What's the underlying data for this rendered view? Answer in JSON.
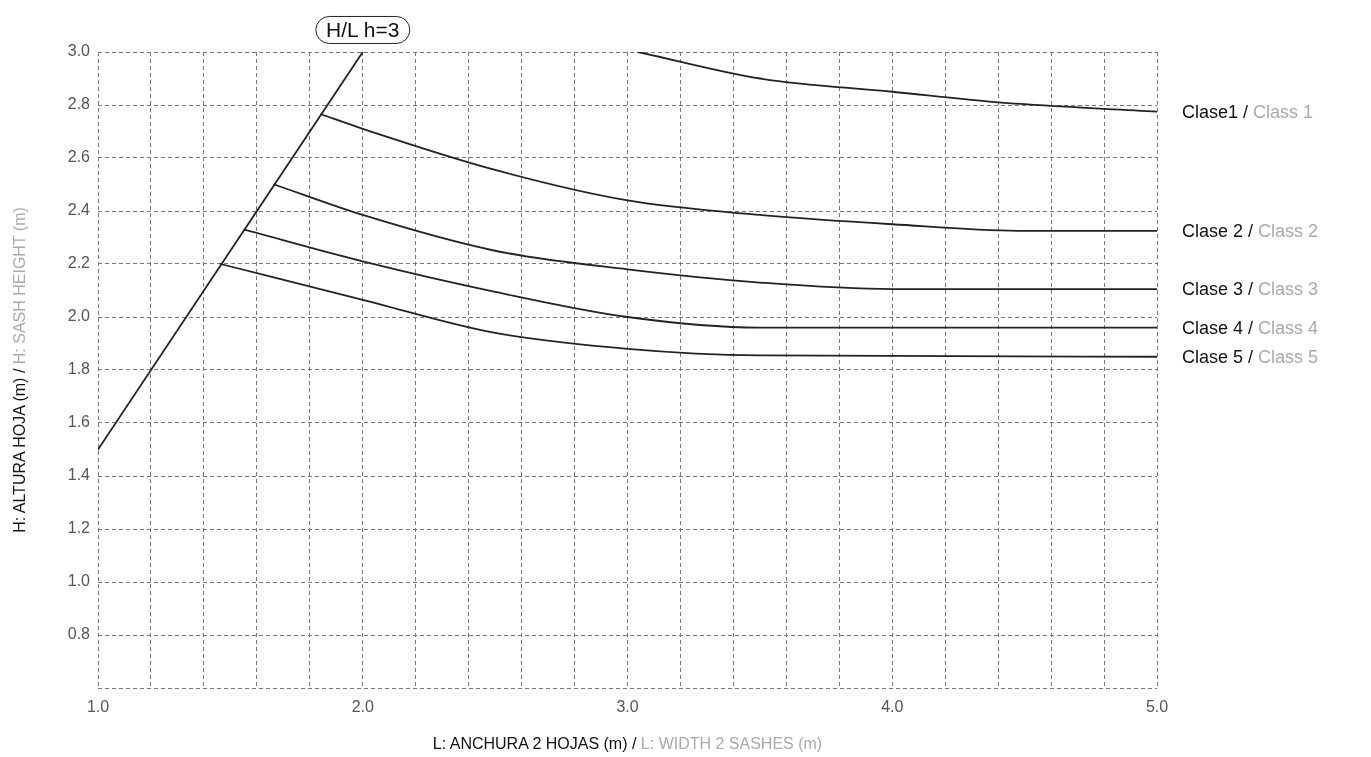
{
  "chart_data": {
    "type": "line",
    "xlabel": "L: ANCHURA 2 HOJAS (m) / L: WIDTH 2 SASHES (m)",
    "ylabel": "H: ALTURA HOJA (m) / H: SASH HEIGHT (m)",
    "xlim": [
      1.0,
      5.0
    ],
    "xticks": [
      {
        "value": 1,
        "label": "1.0"
      },
      {
        "value": 1.2,
        "label": null
      },
      {
        "value": 1.4,
        "label": null
      },
      {
        "value": 1.6,
        "label": null
      },
      {
        "value": 1.8,
        "label": null
      },
      {
        "value": 2,
        "label": "2.0"
      },
      {
        "value": 2.2,
        "label": null
      },
      {
        "value": 2.4,
        "label": null
      },
      {
        "value": 2.6,
        "label": null
      },
      {
        "value": 2.8,
        "label": null
      },
      {
        "value": 3,
        "label": "3.0"
      },
      {
        "value": 3.2,
        "label": null
      },
      {
        "value": 3.4,
        "label": null
      },
      {
        "value": 3.6,
        "label": null
      },
      {
        "value": 3.8,
        "label": null
      },
      {
        "value": 4,
        "label": "4.0"
      },
      {
        "value": 4.2,
        "label": null
      },
      {
        "value": 4.4,
        "label": null
      },
      {
        "value": 4.6,
        "label": null
      },
      {
        "value": 4.8,
        "label": null
      },
      {
        "value": 5,
        "label": "5.0"
      }
    ],
    "ylim": [
      0.6,
      3.0
    ],
    "yticks": [
      {
        "value": 0.6,
        "label": null
      },
      0.8,
      {
        "value": 1,
        "label": "1.0"
      },
      1.2,
      1.4,
      1.6,
      1.8,
      {
        "value": 2,
        "label": "2.0"
      },
      2.2,
      2.4,
      2.6,
      2.8,
      {
        "value": 3,
        "label": "3.0"
      }
    ],
    "grid": true,
    "series": [
      {
        "name": "H/L h=3",
        "color": "#222222",
        "x": [
          1.0,
          2.0
        ],
        "values": [
          1.5,
          3.0
        ]
      },
      {
        "name": "Clase1 / Class 1",
        "color": "#222222",
        "x": [
          3.04,
          3.5,
          4.0,
          4.4,
          5.0
        ],
        "values": [
          3.0,
          2.9,
          2.85,
          2.81,
          2.775
        ]
      },
      {
        "name": "Clase 2 / Class 2",
        "color": "#222222",
        "x": [
          1.843,
          2.0,
          2.5,
          3.0,
          3.5,
          4.0,
          4.5,
          5.0
        ],
        "values": [
          2.765,
          2.71,
          2.555,
          2.44,
          2.385,
          2.35,
          2.325,
          2.325
        ]
      },
      {
        "name": "Clase 3 / Class 3",
        "color": "#222222",
        "x": [
          1.666,
          2.0,
          2.5,
          3.0,
          3.5,
          4.0,
          5.0
        ],
        "values": [
          2.5,
          2.385,
          2.25,
          2.18,
          2.13,
          2.105,
          2.105
        ]
      },
      {
        "name": "Clase 4 / Class 4",
        "color": "#222222",
        "x": [
          1.553,
          2.0,
          2.5,
          3.0,
          3.5,
          5.0
        ],
        "values": [
          2.33,
          2.21,
          2.095,
          2.0,
          1.96,
          1.96
        ]
      },
      {
        "name": "Clase 5 / Class 5",
        "color": "#222222",
        "x": [
          1.463,
          2.0,
          2.5,
          3.0,
          3.5,
          5.0
        ],
        "values": [
          2.2,
          2.065,
          1.94,
          1.88,
          1.855,
          1.85
        ]
      }
    ]
  }
}
